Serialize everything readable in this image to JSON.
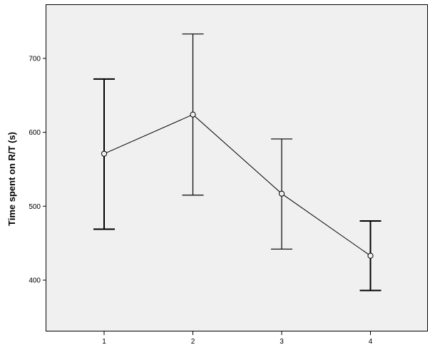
{
  "chart_data": {
    "type": "line",
    "title": "",
    "xlabel": "",
    "ylabel": "Time spent on R/T (s)",
    "categories": [
      "1",
      "2",
      "3",
      "4"
    ],
    "series": [
      {
        "values": [
          571,
          624,
          517,
          433
        ],
        "error_low": [
          469,
          515,
          442,
          386
        ],
        "error_high": [
          672,
          733,
          591,
          480
        ]
      }
    ],
    "yticks": [
      400,
      500,
      600,
      700
    ],
    "ylim": [
      332,
      755
    ],
    "grid": false,
    "colors": {
      "plot_background": "#f0f0f0",
      "line": "#000000",
      "error_bar": "#000000",
      "marker_fill": "#f0f0f0"
    }
  }
}
